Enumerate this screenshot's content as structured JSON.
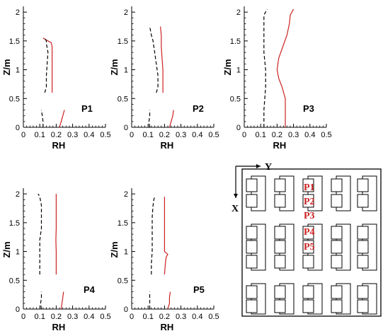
{
  "colors": {
    "measured": "#cc2222",
    "reference": "#000000",
    "layout_label": "#cc2222"
  },
  "axis": {
    "xlabel": "RH",
    "ylabel": "Z/m",
    "xticks": [
      "0",
      "0.1",
      "0.2",
      "0.3",
      "0.4",
      "0.5"
    ],
    "yticks": [
      "0",
      "0.5",
      "1",
      "1.5",
      "2"
    ]
  },
  "chart_data": [
    {
      "type": "line",
      "label": "P1",
      "xlim": [
        0,
        0.5
      ],
      "ylim": [
        0,
        2.1
      ],
      "xlabel": "RH",
      "ylabel": "Z/m",
      "series": [
        {
          "style": "solid-red",
          "segments": [
            [
              [
                0.22,
                0
              ],
              [
                0.23,
                0.1
              ],
              [
                0.24,
                0.2
              ],
              [
                0.25,
                0.3
              ]
            ],
            [
              [
                0.175,
                0.6
              ],
              [
                0.175,
                0.8
              ],
              [
                0.175,
                1.0
              ],
              [
                0.175,
                1.2
              ],
              [
                0.175,
                1.4
              ],
              [
                0.17,
                1.47
              ],
              [
                0.15,
                1.5
              ],
              [
                0.12,
                1.55
              ]
            ]
          ]
        },
        {
          "style": "dashed-black",
          "segments": [
            [
              [
                0.12,
                0
              ],
              [
                0.12,
                0.1
              ],
              [
                0.115,
                0.2
              ],
              [
                0.11,
                0.3
              ]
            ],
            [
              [
                0.13,
                0.6
              ],
              [
                0.14,
                0.7
              ],
              [
                0.14,
                0.9
              ],
              [
                0.145,
                1.1
              ],
              [
                0.15,
                1.3
              ],
              [
                0.14,
                1.45
              ],
              [
                0.14,
                1.5
              ],
              [
                0.13,
                1.55
              ]
            ]
          ]
        }
      ]
    },
    {
      "type": "line",
      "label": "P2",
      "xlim": [
        0,
        0.5
      ],
      "ylim": [
        0,
        2.1
      ],
      "xlabel": "RH",
      "ylabel": "Z/m",
      "series": [
        {
          "style": "solid-red",
          "segments": [
            [
              [
                0.23,
                0
              ],
              [
                0.24,
                0.1
              ],
              [
                0.25,
                0.2
              ],
              [
                0.255,
                0.3
              ]
            ],
            [
              [
                0.19,
                0.6
              ],
              [
                0.19,
                0.8
              ],
              [
                0.19,
                1.0
              ],
              [
                0.185,
                1.2
              ],
              [
                0.18,
                1.4
              ],
              [
                0.18,
                1.6
              ],
              [
                0.175,
                1.75
              ]
            ]
          ]
        },
        {
          "style": "dashed-black",
          "segments": [
            [
              [
                0.11,
                0
              ],
              [
                0.105,
                0.1
              ],
              [
                0.11,
                0.2
              ],
              [
                0.11,
                0.3
              ]
            ],
            [
              [
                0.15,
                0.6
              ],
              [
                0.16,
                0.7
              ],
              [
                0.16,
                0.9
              ],
              [
                0.15,
                1.1
              ],
              [
                0.14,
                1.3
              ],
              [
                0.13,
                1.5
              ],
              [
                0.12,
                1.6
              ],
              [
                0.11,
                1.75
              ]
            ]
          ]
        }
      ]
    },
    {
      "type": "line",
      "label": "P3",
      "xlim": [
        0,
        0.5
      ],
      "ylim": [
        0,
        2.1
      ],
      "xlabel": "RH",
      "ylabel": "Z/m",
      "series": [
        {
          "style": "solid-red",
          "segments": [
            [
              [
                0.25,
                0
              ],
              [
                0.25,
                0.3
              ],
              [
                0.25,
                0.5
              ],
              [
                0.24,
                0.6
              ],
              [
                0.23,
                0.7
              ],
              [
                0.21,
                0.85
              ],
              [
                0.2,
                1.0
              ],
              [
                0.21,
                1.2
              ],
              [
                0.235,
                1.4
              ],
              [
                0.26,
                1.6
              ],
              [
                0.275,
                1.8
              ],
              [
                0.28,
                1.95
              ],
              [
                0.3,
                2.05
              ]
            ]
          ]
        },
        {
          "style": "dashed-black",
          "segments": [
            [
              [
                0.12,
                0
              ],
              [
                0.12,
                0.3
              ],
              [
                0.125,
                0.5
              ],
              [
                0.13,
                0.7
              ],
              [
                0.13,
                1.0
              ],
              [
                0.12,
                1.3
              ],
              [
                0.12,
                1.6
              ],
              [
                0.12,
                1.8
              ],
              [
                0.12,
                1.95
              ],
              [
                0.14,
                2.05
              ]
            ]
          ]
        }
      ]
    },
    {
      "type": "line",
      "label": "P4",
      "xlim": [
        0,
        0.5
      ],
      "ylim": [
        0,
        2.1
      ],
      "xlabel": "RH",
      "ylabel": "Z/m",
      "series": [
        {
          "style": "solid-red",
          "segments": [
            [
              [
                0.23,
                0
              ],
              [
                0.235,
                0.1
              ],
              [
                0.24,
                0.2
              ],
              [
                0.245,
                0.3
              ]
            ],
            [
              [
                0.2,
                0.6
              ],
              [
                0.2,
                0.8
              ],
              [
                0.2,
                1.0
              ],
              [
                0.198,
                1.2
              ],
              [
                0.2,
                1.4
              ],
              [
                0.2,
                1.6
              ],
              [
                0.2,
                1.8
              ],
              [
                0.2,
                2.0
              ]
            ]
          ]
        },
        {
          "style": "dashed-black",
          "segments": [
            [
              [
                0.11,
                0
              ],
              [
                0.105,
                0.1
              ],
              [
                0.11,
                0.2
              ],
              [
                0.11,
                0.3
              ]
            ],
            [
              [
                0.1,
                0.6
              ],
              [
                0.1,
                0.8
              ],
              [
                0.1,
                1.0
              ],
              [
                0.1,
                1.2
              ],
              [
                0.11,
                1.4
              ],
              [
                0.11,
                1.6
              ],
              [
                0.11,
                1.8
              ],
              [
                0.1,
                1.95
              ],
              [
                0.09,
                2.0
              ]
            ]
          ]
        }
      ]
    },
    {
      "type": "line",
      "label": "P5",
      "xlim": [
        0,
        0.5
      ],
      "ylim": [
        0,
        2.1
      ],
      "xlabel": "RH",
      "ylabel": "Z/m",
      "series": [
        {
          "style": "solid-red",
          "segments": [
            [
              [
                0.22,
                0
              ],
              [
                0.23,
                0.1
              ],
              [
                0.23,
                0.2
              ],
              [
                0.235,
                0.3
              ]
            ],
            [
              [
                0.2,
                0.6
              ],
              [
                0.205,
                0.8
              ],
              [
                0.21,
                0.9
              ],
              [
                0.22,
                0.95
              ],
              [
                0.2,
                1.0
              ],
              [
                0.2,
                1.2
              ],
              [
                0.2,
                1.4
              ],
              [
                0.2,
                1.6
              ],
              [
                0.2,
                1.8
              ],
              [
                0.2,
                1.95
              ]
            ]
          ]
        },
        {
          "style": "dashed-black",
          "segments": [
            [
              [
                0.11,
                0
              ],
              [
                0.11,
                0.1
              ],
              [
                0.11,
                0.2
              ],
              [
                0.11,
                0.3
              ]
            ],
            [
              [
                0.12,
                0.6
              ],
              [
                0.12,
                0.8
              ],
              [
                0.125,
                1.0
              ],
              [
                0.125,
                1.2
              ],
              [
                0.125,
                1.4
              ],
              [
                0.125,
                1.6
              ],
              [
                0.13,
                1.8
              ],
              [
                0.135,
                1.9
              ],
              [
                0.14,
                1.95
              ]
            ]
          ]
        }
      ]
    }
  ],
  "layout": {
    "y_axis_label": "Y",
    "x_axis_label": "X",
    "points": [
      "P1",
      "P2",
      "P3",
      "P4",
      "P5"
    ],
    "rows": 3,
    "columns": 5
  }
}
